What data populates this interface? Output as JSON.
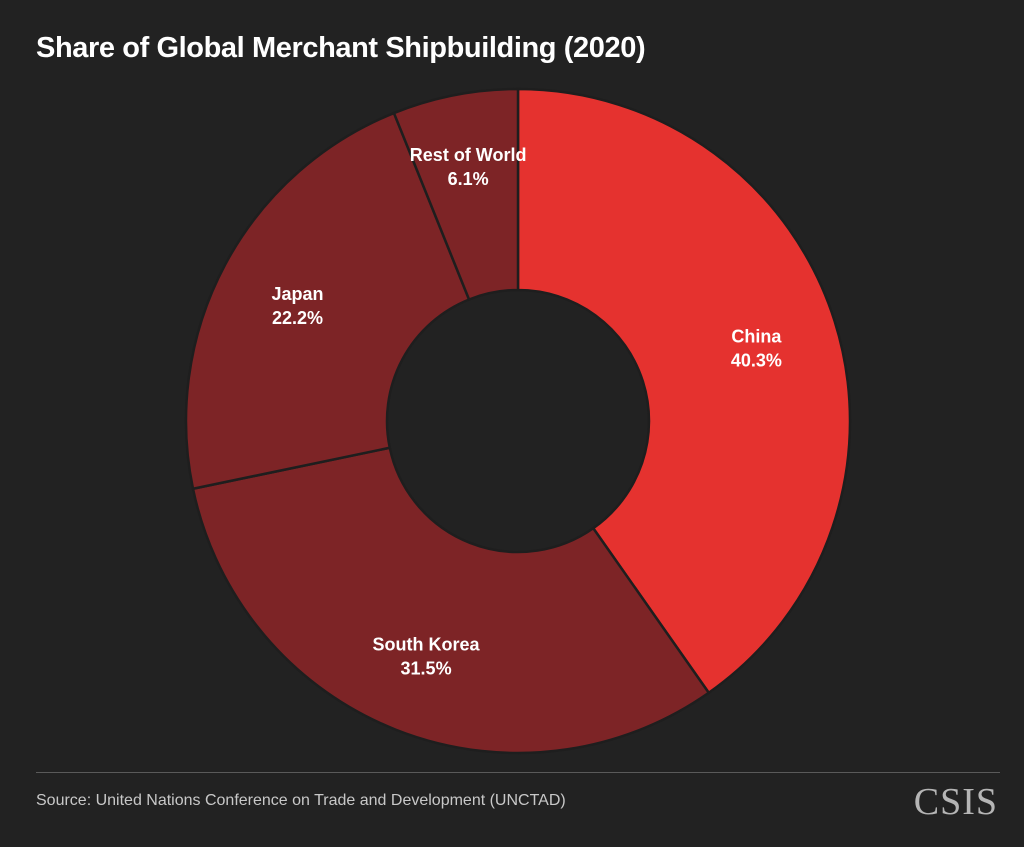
{
  "header": {
    "title": "Share of Global Merchant Shipbuilding (2020)"
  },
  "chart_data": {
    "type": "pie",
    "donut": true,
    "unit": "%",
    "title": "Share of Global Merchant Shipbuilding (2020)",
    "slices": [
      {
        "name": "China",
        "value": 40.3,
        "value_label": "40.3%",
        "color": "#e5322f"
      },
      {
        "name": "South Korea",
        "value": 31.5,
        "value_label": "31.5%",
        "color": "#7d2426"
      },
      {
        "name": "Japan",
        "value": 22.2,
        "value_label": "22.2%",
        "color": "#7d2426"
      },
      {
        "name": "Rest of World",
        "value": 6.1,
        "value_label": "6.1%",
        "color": "#7d2426"
      }
    ],
    "start": "12 o'clock",
    "direction": "clockwise"
  },
  "footer": {
    "source": "Source: United Nations Conference on Trade and Development (UNCTAD)",
    "logo": "CSIS"
  },
  "colors": {
    "background": "#222222",
    "slice_separator": "#1e1e1e",
    "divider": "#5a5a5a"
  }
}
